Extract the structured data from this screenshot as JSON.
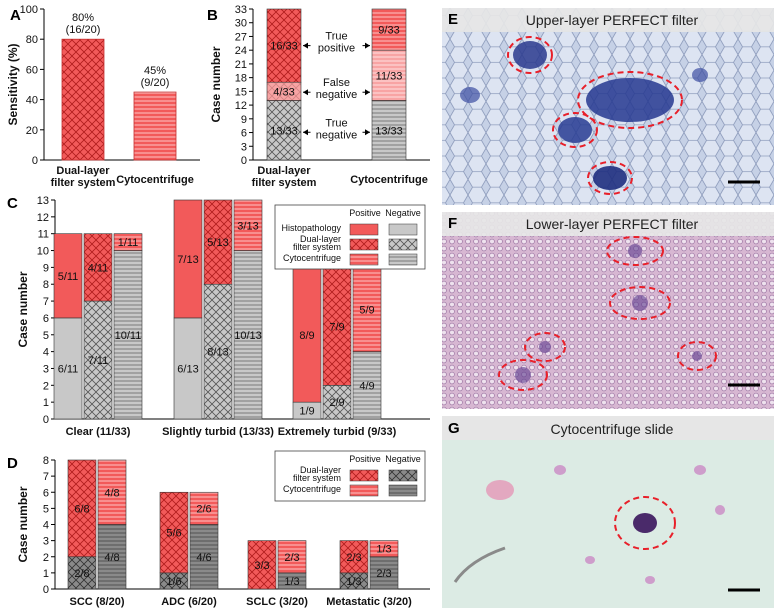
{
  "chart_data": [
    {
      "panel": "A",
      "type": "bar",
      "ylabel": "Sensitivity (%)",
      "ylim": [
        0,
        100
      ],
      "yticks": [
        "0",
        "20",
        "40",
        "60",
        "80",
        "100"
      ],
      "categories": [
        "Dual-layer\nfilter system",
        "Cytocentrifuge"
      ],
      "values": [
        80,
        45
      ],
      "value_labels": [
        "80%\n(16/20)",
        "45%\n(9/20)"
      ]
    },
    {
      "panel": "B",
      "type": "bar",
      "ylabel": "Case number",
      "ylim": [
        0,
        33
      ],
      "yticks": [
        "0",
        "3",
        "6",
        "9",
        "12",
        "15",
        "18",
        "21",
        "24",
        "27",
        "30",
        "33"
      ],
      "categories": [
        "Dual-layer\nfilter system",
        "Cytocentrifuge"
      ],
      "series": [
        {
          "name": "True negative",
          "values": [
            13,
            13
          ],
          "labels": [
            "13/33",
            "13/33"
          ]
        },
        {
          "name": "False negative",
          "values": [
            4,
            11
          ],
          "labels": [
            "4/33",
            "11/33"
          ]
        },
        {
          "name": "True positive",
          "values": [
            16,
            9
          ],
          "labels": [
            "16/33",
            "9/33"
          ]
        }
      ],
      "annotations": [
        "True\npositive",
        "False\nnegative",
        "True\nnegative"
      ]
    },
    {
      "panel": "C",
      "type": "bar",
      "ylabel": "Case number",
      "ylim": [
        0,
        13
      ],
      "yticks": [
        "0",
        "1",
        "2",
        "3",
        "4",
        "5",
        "6",
        "7",
        "8",
        "9",
        "10",
        "11",
        "12",
        "13"
      ],
      "categories": [
        "Clear (11/33)",
        "Slightly turbid (13/33)",
        "Extremely turbid (9/33)"
      ],
      "legend": {
        "header": [
          "Positive",
          "Negative"
        ],
        "rows": [
          "Histopathology",
          "Dual-layer\nfilter system",
          "Cytocentrifuge"
        ]
      },
      "series": [
        {
          "name": "Histopathology",
          "negative": [
            6,
            6,
            1
          ],
          "positive": [
            5,
            7,
            8
          ],
          "neg_labels": [
            "6/11",
            "6/13",
            "1/9"
          ],
          "pos_labels": [
            "5/11",
            "7/13",
            "8/9"
          ]
        },
        {
          "name": "Dual-layer filter system",
          "negative": [
            7,
            8,
            2
          ],
          "positive": [
            4,
            5,
            7
          ],
          "neg_labels": [
            "7/11",
            "8/13",
            "2/9"
          ],
          "pos_labels": [
            "4/11",
            "5/13",
            "7/9"
          ]
        },
        {
          "name": "Cytocentrifuge",
          "negative": [
            10,
            10,
            4
          ],
          "positive": [
            1,
            3,
            5
          ],
          "neg_labels": [
            "10/11",
            "10/13",
            "4/9"
          ],
          "pos_labels": [
            "1/11",
            "3/13",
            "5/9"
          ]
        }
      ]
    },
    {
      "panel": "D",
      "type": "bar",
      "ylabel": "Case number",
      "ylim": [
        0,
        8
      ],
      "yticks": [
        "0",
        "1",
        "2",
        "3",
        "4",
        "5",
        "6",
        "7",
        "8"
      ],
      "categories": [
        "SCC (8/20)",
        "ADC  (6/20)",
        "SCLC  (3/20)",
        "Metastatic (3/20)"
      ],
      "legend": {
        "header": [
          "Positive",
          "Negative"
        ],
        "rows": [
          "Dual-layer\nfilter system",
          "Cytocentrifuge"
        ]
      },
      "series": [
        {
          "name": "Dual-layer filter system",
          "negative": [
            2,
            1,
            0,
            1
          ],
          "positive": [
            6,
            5,
            3,
            2
          ],
          "neg_labels": [
            "2/8",
            "1/6",
            "",
            "1/3"
          ],
          "pos_labels": [
            "6/8",
            "5/6",
            "3/3",
            "2/3"
          ]
        },
        {
          "name": "Cytocentrifuge",
          "negative": [
            4,
            4,
            1,
            2
          ],
          "positive": [
            4,
            2,
            2,
            1
          ],
          "neg_labels": [
            "4/8",
            "4/6",
            "1/3",
            "2/3"
          ],
          "pos_labels": [
            "4/8",
            "2/6",
            "2/3",
            "1/3"
          ]
        }
      ]
    }
  ],
  "images": {
    "E": {
      "title": "Upper-layer PERFECT filter"
    },
    "F": {
      "title": "Lower-layer PERFECT filter"
    },
    "G": {
      "title": "Cytocentrifuge slide"
    }
  },
  "panel_letters": [
    "A",
    "B",
    "C",
    "D",
    "E",
    "F",
    "G"
  ],
  "colors": {
    "red": "#f25a5a",
    "gray": "#c8c8c8",
    "dark_gray": "#8a8a8a",
    "dash": "#e8202a"
  }
}
